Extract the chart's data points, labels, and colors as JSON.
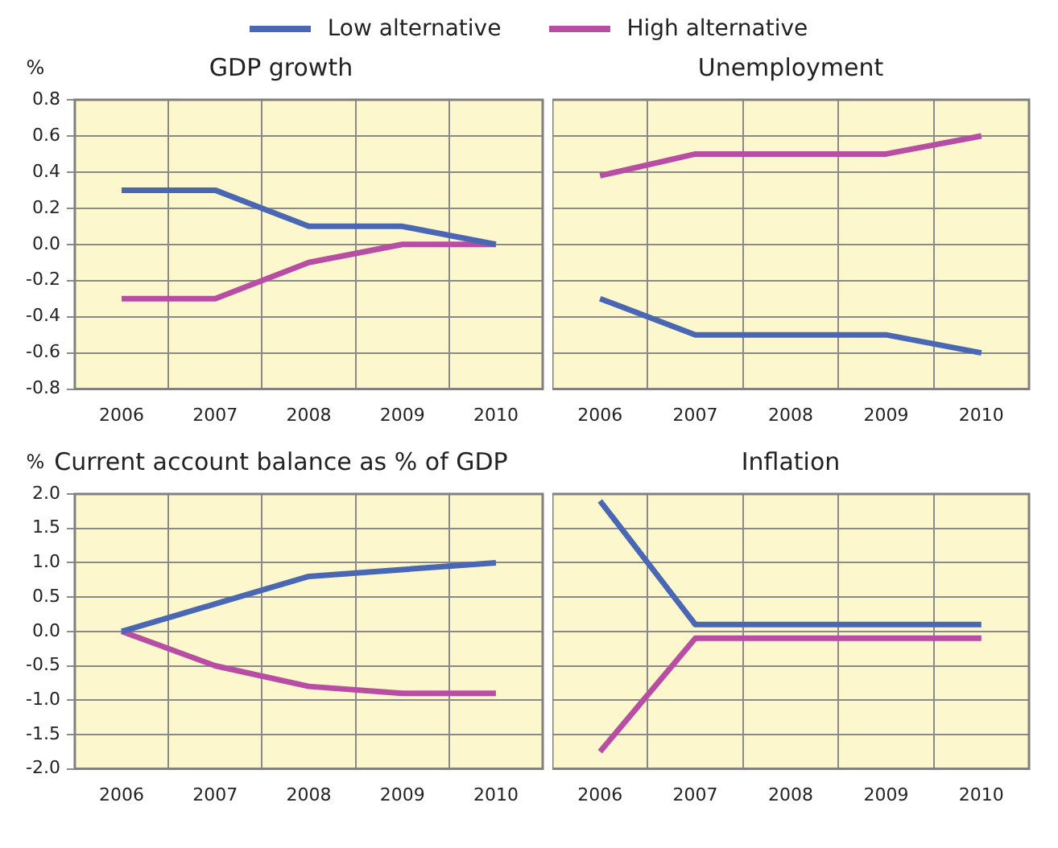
{
  "chart_data": [
    {
      "type": "line",
      "title": "GDP growth",
      "ylabel": "%",
      "categories": [
        "2006",
        "2007",
        "2008",
        "2009",
        "2010"
      ],
      "series": [
        {
          "name": "Low alternative",
          "color": "#4a67b4",
          "values": [
            0.3,
            0.3,
            0.1,
            0.1,
            0.0
          ]
        },
        {
          "name": "High alternative",
          "color": "#b84ea4",
          "values": [
            -0.3,
            -0.3,
            -0.1,
            0.0,
            0.0
          ]
        }
      ],
      "ylim": [
        -0.8,
        0.8
      ],
      "yticks": [
        {
          "value": -0.8,
          "label": "-0.8"
        },
        {
          "value": -0.6,
          "label": "-0.6"
        },
        {
          "value": -0.4,
          "label": "-0.4"
        },
        {
          "value": -0.2,
          "label": "-0.2"
        },
        {
          "value": 0,
          "label": "0.0"
        },
        {
          "value": 0.2,
          "label": "0.2"
        },
        {
          "value": 0.4,
          "label": "0.4"
        },
        {
          "value": 0.6,
          "label": "0.6"
        },
        {
          "value": 0.8,
          "label": "0.8"
        }
      ],
      "grid": true,
      "legend": "top",
      "marker": "none"
    },
    {
      "type": "line",
      "title": "Unemployment",
      "categories": [
        "2006",
        "2007",
        "2008",
        "2009",
        "2010"
      ],
      "series": [
        {
          "color": "#4a67b4",
          "values": [
            -0.3,
            -0.5,
            -0.5,
            -0.5,
            -0.6
          ]
        },
        {
          "color": "#b84ea4",
          "values": [
            0.38,
            0.5,
            0.5,
            0.5,
            0.6
          ]
        }
      ],
      "ylim": [
        -0.8,
        0.8
      ],
      "yticks": [
        -0.8,
        -0.6,
        -0.4,
        -0.2,
        0,
        0.2,
        0.4,
        0.6,
        0.8
      ],
      "grid": true,
      "tick_labels": "x",
      "marker": "none"
    },
    {
      "type": "line",
      "title": "Current account balance as % of GDP",
      "ylabel": "%",
      "categories": [
        "2006",
        "2007",
        "2008",
        "2009",
        "2010"
      ],
      "series": [
        {
          "color": "#4a67b4",
          "values": [
            0.0,
            0.4,
            0.8,
            0.9,
            1.0
          ]
        },
        {
          "color": "#b84ea4",
          "values": [
            0.0,
            -0.5,
            -0.8,
            -0.9,
            -0.9
          ]
        }
      ],
      "ylim": [
        -2,
        2
      ],
      "yticks": [
        {
          "value": -2,
          "label": "-2.0"
        },
        {
          "value": -1.5,
          "label": "-1.5"
        },
        {
          "value": -1,
          "label": "-1.0"
        },
        {
          "value": -0.5,
          "label": "-0.5"
        },
        {
          "value": 0,
          "label": "0.0"
        },
        {
          "value": 0.5,
          "label": "0.5"
        },
        {
          "value": 1,
          "label": "1.0"
        },
        {
          "value": 1.5,
          "label": "1.5"
        },
        {
          "value": 2,
          "label": "2.0"
        }
      ],
      "grid": true,
      "marker": "none"
    },
    {
      "type": "line",
      "title": "Inflation",
      "categories": [
        "2006",
        "2007",
        "2008",
        "2009",
        "2010"
      ],
      "series": [
        {
          "color": "#4a67b4",
          "values": [
            1.9,
            0.1,
            0.1,
            0.1,
            0.1
          ]
        },
        {
          "color": "#b84ea4",
          "values": [
            -1.75,
            -0.1,
            -0.1,
            -0.1,
            -0.1
          ]
        }
      ],
      "ylim": [
        -2,
        2
      ],
      "yticks": [
        -2,
        -1.5,
        -1,
        -0.5,
        0,
        0.5,
        1,
        1.5,
        2
      ],
      "grid": true,
      "tick_labels": "x",
      "marker": "none"
    }
  ]
}
